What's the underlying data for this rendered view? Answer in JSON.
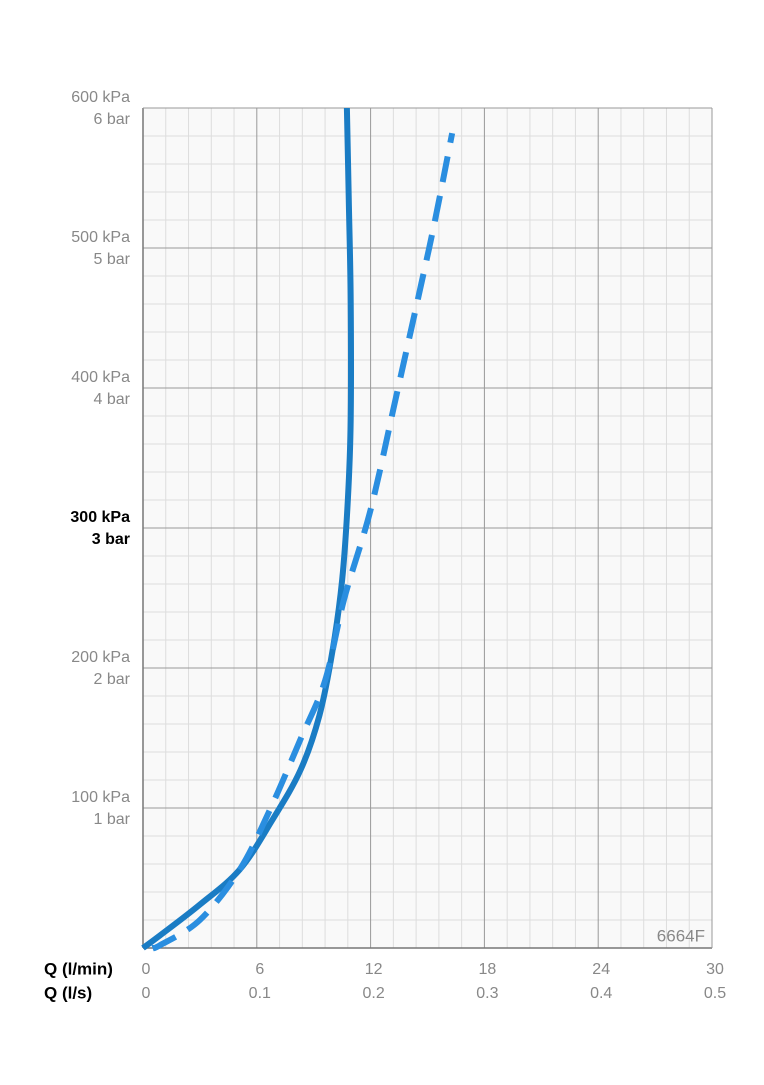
{
  "chart_data": {
    "type": "line",
    "annotation": "6664F",
    "xlabel": "Q (l/min)",
    "x2label": "Q (l/s)",
    "xlim": [
      0,
      30
    ],
    "xticks": [
      0,
      6,
      12,
      18,
      24,
      30
    ],
    "x2lim": [
      0,
      0.5
    ],
    "x2ticks": [
      0,
      0.1,
      0.2,
      0.3,
      0.4,
      0.5
    ],
    "ylim": [
      0,
      600
    ],
    "yticks": [
      {
        "value": 100,
        "label": "100 kPa"
      },
      {
        "value": 200,
        "label": "200 kPa"
      },
      {
        "value": 300,
        "label": "300 kPa"
      },
      {
        "value": 400,
        "label": "400 kPa"
      },
      {
        "value": 500,
        "label": "500 kPa"
      },
      {
        "value": 600,
        "label": "600 kPa"
      }
    ],
    "y2lim": [
      0,
      6
    ],
    "y2ticks": [
      {
        "value": 1,
        "label": "1 bar"
      },
      {
        "value": 2,
        "label": "2 bar"
      },
      {
        "value": 3,
        "label": "3 bar"
      },
      {
        "value": 4,
        "label": "4 bar"
      },
      {
        "value": 5,
        "label": "5 bar"
      },
      {
        "value": 6,
        "label": "6 bar"
      }
    ],
    "bold_ytick": 300,
    "grid": true,
    "series": [
      {
        "color": "#1a7cc4",
        "dashed": false,
        "x": [
          0,
          0.9,
          3.0,
          5.1,
          6.8,
          8.3,
          9.3,
          10.0,
          10.5,
          10.8,
          10.95,
          10.95,
          10.85,
          10.75
        ],
        "values": [
          0,
          9,
          31,
          56,
          91,
          127,
          166,
          213,
          263,
          320,
          377,
          463,
          534,
          600
        ]
      },
      {
        "color": "#2a8ee0",
        "dashed": true,
        "x": [
          0.5,
          0.9,
          3.0,
          5.1,
          6.7,
          8.3,
          9.6,
          10.6,
          12.0,
          13.3,
          14.6,
          15.4,
          16.3
        ],
        "values": [
          0,
          2,
          20,
          56,
          99,
          149,
          191,
          249,
          313,
          391,
          470,
          520,
          582
        ]
      }
    ]
  }
}
